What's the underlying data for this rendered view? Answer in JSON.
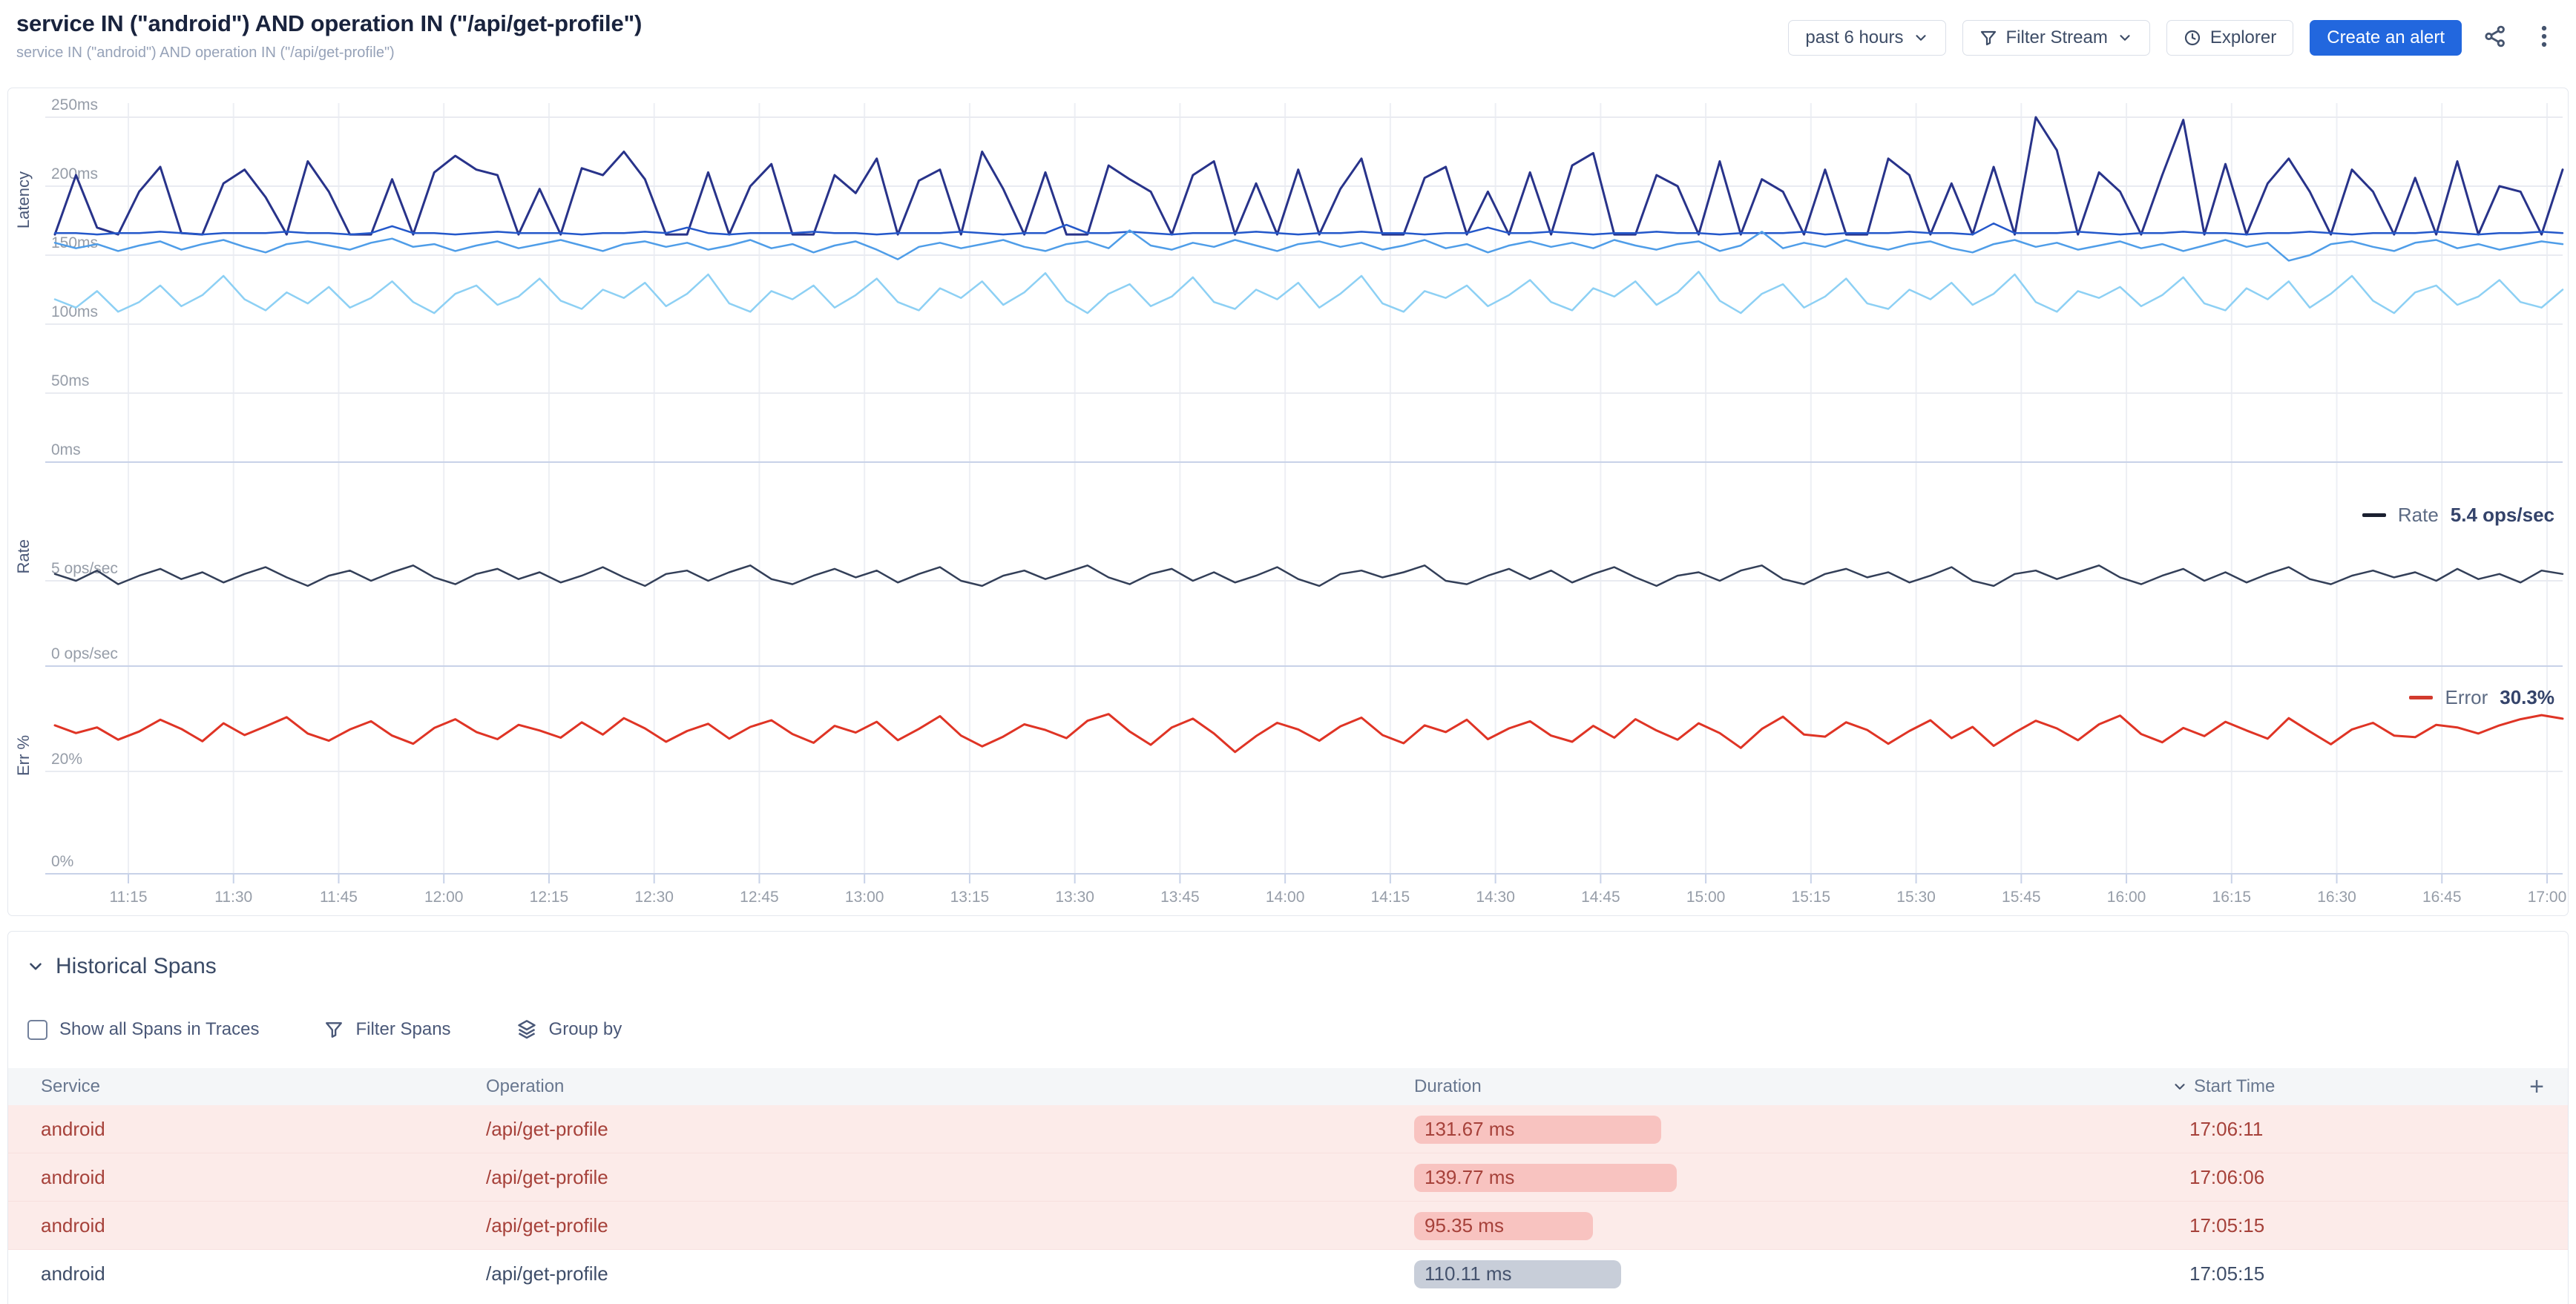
{
  "header": {
    "title": "service IN (\"android\") AND operation IN (\"/api/get-profile\")",
    "subtitle": "service IN (\"android\") AND operation IN (\"/api/get-profile\")",
    "controls": {
      "time_range": "past 6 hours",
      "filter_stream": "Filter Stream",
      "explorer": "Explorer",
      "create_alert": "Create an alert"
    }
  },
  "chart_data": {
    "type": "line",
    "x_ticks": [
      "11:15",
      "11:30",
      "11:45",
      "12:00",
      "12:15",
      "12:30",
      "12:45",
      "13:00",
      "13:15",
      "13:30",
      "13:45",
      "14:00",
      "14:15",
      "14:30",
      "14:45",
      "15:00",
      "15:15",
      "15:30",
      "15:45",
      "16:00",
      "16:15",
      "16:30",
      "16:45",
      "17:00"
    ],
    "charts": [
      {
        "id": "latency",
        "ylabel": "Latency",
        "unit": "ms",
        "ylim": [
          0,
          268
        ],
        "yticks": [
          {
            "v": 250,
            "label": "250ms"
          },
          {
            "v": 200,
            "label": "200ms"
          },
          {
            "v": 150,
            "label": "150ms"
          },
          {
            "v": 100,
            "label": "100ms"
          },
          {
            "v": 50,
            "label": "50ms"
          },
          {
            "v": 0,
            "label": "0ms"
          }
        ],
        "series": [
          {
            "name": "s1",
            "color": "#28338a",
            "width": 3,
            "values": [
              165,
              208,
              170,
              165,
              196,
              214,
              166,
              165,
              202,
              212,
              192,
              165,
              218,
              196,
              165,
              165,
              205,
              165,
              210,
              222,
              212,
              208,
              165,
              198,
              165,
              213,
              208,
              225,
              205,
              165,
              165,
              210,
              165,
              200,
              216,
              165,
              165,
              208,
              195,
              220,
              165,
              204,
              212,
              165,
              225,
              198,
              165,
              210,
              165,
              165,
              215,
              205,
              196,
              165,
              208,
              218,
              165,
              202,
              165,
              212,
              165,
              198,
              220,
              165,
              165,
              206,
              214,
              165,
              196,
              165,
              210,
              165,
              215,
              224,
              165,
              165,
              208,
              200,
              165,
              218,
              165,
              205,
              196,
              165,
              212,
              165,
              165,
              220,
              208,
              165,
              202,
              165,
              214,
              165,
              250,
              226,
              165,
              210,
              196,
              165,
              208,
              248,
              165,
              216,
              165,
              202,
              220,
              196,
              165,
              212,
              196,
              165,
              206,
              165,
              218,
              165,
              200,
              196,
              165,
              212
            ]
          },
          {
            "name": "s2",
            "color": "#2458ca",
            "width": 2.5,
            "values": [
              166,
              166,
              165,
              166,
              166,
              167,
              166,
              165,
              166,
              166,
              166,
              167,
              166,
              166,
              165,
              166,
              171,
              166,
              166,
              165,
              166,
              167,
              166,
              166,
              166,
              165,
              166,
              166,
              167,
              166,
              170,
              166,
              165,
              166,
              166,
              166,
              167,
              166,
              166,
              165,
              166,
              166,
              166,
              167,
              166,
              165,
              166,
              166,
              172,
              166,
              166,
              167,
              166,
              165,
              166,
              166,
              166,
              167,
              166,
              165,
              166,
              166,
              167,
              166,
              166,
              165,
              166,
              166,
              170,
              166,
              166,
              167,
              166,
              165,
              166,
              166,
              167,
              166,
              166,
              165,
              166,
              166,
              166,
              167,
              165,
              166,
              166,
              166,
              167,
              166,
              166,
              165,
              173,
              166,
              166,
              166,
              167,
              166,
              165,
              166,
              166,
              167,
              166,
              166,
              165,
              166,
              166,
              167,
              166,
              165,
              166,
              166,
              166,
              167,
              166,
              165,
              166,
              166,
              167,
              166
            ]
          },
          {
            "name": "s3",
            "color": "#4f9de8",
            "width": 2.5,
            "values": [
              159,
              155,
              158,
              153,
              157,
              160,
              154,
              158,
              161,
              156,
              152,
              158,
              160,
              157,
              154,
              159,
              162,
              156,
              158,
              153,
              157,
              160,
              155,
              158,
              161,
              157,
              153,
              158,
              160,
              156,
              159,
              154,
              157,
              161,
              155,
              158,
              152,
              157,
              160,
              154,
              147,
              156,
              159,
              155,
              158,
              161,
              156,
              153,
              158,
              160,
              155,
              168,
              157,
              154,
              159,
              156,
              161,
              157,
              153,
              158,
              160,
              156,
              159,
              154,
              157,
              161,
              155,
              158,
              152,
              157,
              160,
              156,
              159,
              155,
              161,
              157,
              154,
              158,
              160,
              153,
              157,
              167,
              155,
              159,
              156,
              161,
              157,
              154,
              158,
              160,
              155,
              152,
              158,
              161,
              156,
              159,
              154,
              157,
              160,
              155,
              158,
              153,
              157,
              161,
              156,
              159,
              146,
              150,
              158,
              160,
              156,
              153,
              159,
              161,
              155,
              158,
              154,
              157,
              160,
              158
            ]
          },
          {
            "name": "s4",
            "color": "#8dd0f4",
            "width": 2.5,
            "values": [
              118,
              112,
              124,
              109,
              116,
              128,
              113,
              121,
              135,
              118,
              110,
              123,
              115,
              127,
              112,
              119,
              131,
              116,
              108,
              122,
              128,
              114,
              120,
              133,
              117,
              111,
              125,
              119,
              130,
              113,
              122,
              136,
              115,
              109,
              124,
              118,
              128,
              112,
              121,
              133,
              116,
              110,
              126,
              119,
              131,
              114,
              123,
              137,
              117,
              108,
              122,
              129,
              113,
              120,
              134,
              116,
              111,
              125,
              118,
              130,
              112,
              122,
              135,
              115,
              109,
              124,
              119,
              128,
              113,
              121,
              132,
              116,
              110,
              126,
              120,
              131,
              114,
              123,
              138,
              117,
              108,
              122,
              129,
              112,
              120,
              133,
              115,
              111,
              125,
              118,
              130,
              114,
              122,
              136,
              116,
              109,
              124,
              119,
              127,
              113,
              121,
              134,
              115,
              110,
              126,
              118,
              131,
              112,
              122,
              135,
              117,
              108,
              123,
              128,
              114,
              120,
              132,
              116,
              112,
              125
            ]
          }
        ]
      },
      {
        "id": "rate",
        "ylabel": "Rate",
        "unit": "ops/sec",
        "ylim": [
          0,
          8.3
        ],
        "yticks": [
          {
            "v": 5,
            "label": "5 ops/sec"
          },
          {
            "v": 0,
            "label": "0 ops/sec"
          }
        ],
        "series": [
          {
            "name": "rate",
            "color": "#333f58",
            "width": 2.5,
            "values": [
              5.4,
              5.0,
              5.6,
              4.8,
              5.3,
              5.7,
              5.1,
              5.5,
              4.9,
              5.4,
              5.8,
              5.2,
              4.7,
              5.3,
              5.6,
              5.0,
              5.5,
              5.9,
              5.2,
              4.8,
              5.4,
              5.7,
              5.1,
              5.5,
              4.9,
              5.3,
              5.8,
              5.2,
              4.7,
              5.4,
              5.6,
              5.0,
              5.5,
              5.9,
              5.1,
              4.8,
              5.3,
              5.7,
              5.2,
              5.6,
              4.9,
              5.4,
              5.8,
              5.0,
              4.7,
              5.3,
              5.6,
              5.1,
              5.5,
              5.9,
              5.2,
              4.8,
              5.4,
              5.7,
              5.0,
              5.5,
              4.9,
              5.3,
              5.8,
              5.1,
              4.7,
              5.4,
              5.6,
              5.2,
              5.5,
              5.9,
              5.0,
              4.8,
              5.3,
              5.7,
              5.1,
              5.6,
              4.9,
              5.4,
              5.8,
              5.2,
              4.7,
              5.3,
              5.5,
              5.0,
              5.6,
              5.9,
              5.1,
              4.8,
              5.4,
              5.7,
              5.2,
              5.5,
              4.9,
              5.3,
              5.8,
              5.0,
              4.7,
              5.4,
              5.6,
              5.1,
              5.5,
              5.9,
              5.2,
              4.8,
              5.3,
              5.7,
              5.0,
              5.5,
              4.9,
              5.4,
              5.8,
              5.1,
              4.8,
              5.3,
              5.6,
              5.2,
              5.5,
              5.0,
              5.7,
              5.1,
              5.4,
              4.9,
              5.6,
              5.4
            ]
          }
        ]
      },
      {
        "id": "error",
        "ylabel": "Err %",
        "unit": "%",
        "ylim": [
          0,
          40
        ],
        "yticks": [
          {
            "v": 20,
            "label": "20%"
          },
          {
            "v": 0,
            "label": "0%"
          }
        ],
        "series": [
          {
            "name": "error",
            "color": "#df3425",
            "width": 3,
            "values": [
              29.0,
              27.5,
              28.6,
              26.2,
              27.8,
              30.1,
              28.3,
              25.9,
              29.4,
              27.1,
              28.8,
              30.6,
              27.4,
              26.0,
              28.2,
              29.8,
              27.0,
              25.4,
              28.5,
              30.2,
              27.7,
              26.3,
              29.1,
              28.0,
              26.6,
              29.6,
              27.2,
              30.4,
              28.4,
              25.8,
              27.9,
              29.3,
              26.4,
              28.7,
              30.0,
              27.3,
              25.6,
              28.9,
              27.6,
              29.7,
              26.1,
              28.3,
              30.8,
              27.0,
              24.9,
              26.8,
              29.2,
              28.1,
              26.5,
              29.9,
              31.2,
              27.8,
              25.2,
              28.6,
              30.3,
              27.4,
              23.8,
              26.9,
              29.5,
              28.2,
              26.0,
              28.8,
              30.5,
              27.1,
              25.5,
              29.0,
              27.7,
              30.1,
              26.3,
              28.4,
              29.8,
              27.0,
              25.8,
              28.9,
              26.6,
              30.2,
              28.0,
              26.2,
              29.4,
              27.5,
              24.6,
              28.3,
              30.7,
              27.2,
              26.8,
              29.6,
              28.1,
              25.4,
              27.9,
              30.0,
              26.5,
              28.7,
              25.0,
              27.6,
              29.9,
              28.4,
              26.1,
              29.2,
              30.9,
              27.3,
              25.7,
              28.5,
              26.9,
              29.7,
              28.0,
              26.4,
              30.4,
              27.8,
              25.3,
              28.2,
              29.5,
              27.0,
              26.7,
              29.1,
              28.6,
              27.4,
              29.0,
              30.2,
              31.0,
              30.3
            ]
          }
        ]
      }
    ],
    "legends": [
      {
        "label": "Rate",
        "value": "5.4 ops/sec",
        "color": "#1b2030"
      },
      {
        "label": "Error",
        "value": "30.3%",
        "color": "#d23b2e"
      }
    ]
  },
  "historical": {
    "title": "Historical Spans",
    "show_all_label": "Show all Spans in Traces",
    "filter_spans_label": "Filter Spans",
    "group_by_label": "Group by",
    "columns": [
      "Service",
      "Operation",
      "Duration",
      "Start Time"
    ],
    "add_column_label": "+",
    "rows": [
      {
        "service": "android",
        "operation": "/api/get-profile",
        "duration": "131.67 ms",
        "duration_ms": 131.67,
        "start_time": "17:06:11",
        "status": "error"
      },
      {
        "service": "android",
        "operation": "/api/get-profile",
        "duration": "139.77 ms",
        "duration_ms": 139.77,
        "start_time": "17:06:06",
        "status": "error"
      },
      {
        "service": "android",
        "operation": "/api/get-profile",
        "duration": "95.35 ms",
        "duration_ms": 95.35,
        "start_time": "17:05:15",
        "status": "error"
      },
      {
        "service": "android",
        "operation": "/api/get-profile",
        "duration": "110.11 ms",
        "duration_ms": 110.11,
        "start_time": "17:05:15",
        "status": "ok"
      }
    ]
  }
}
